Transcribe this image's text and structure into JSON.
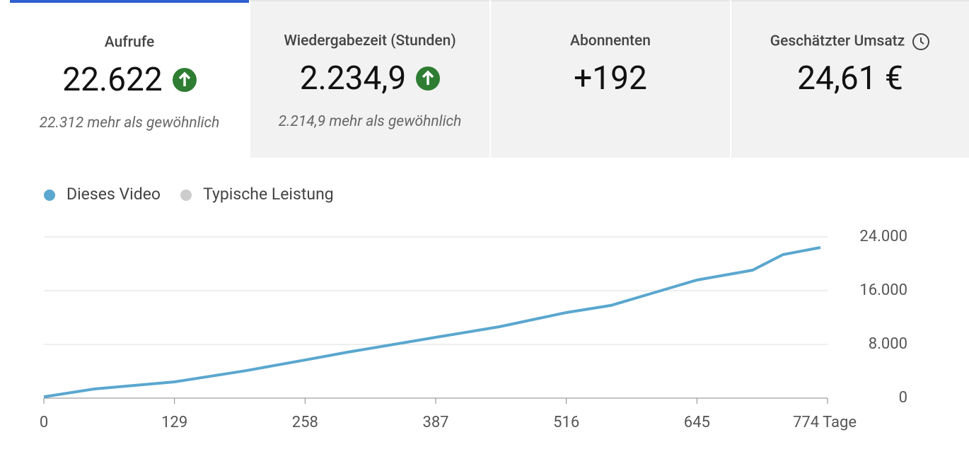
{
  "cards": [
    {
      "title": "Aufrufe",
      "value": "22.622",
      "note": "22.312 mehr als gewöhnlich",
      "trend": "up",
      "selected": true
    },
    {
      "title": "Wiedergabezeit (Stunden)",
      "value": "2.234,9",
      "note": "2.214,9 mehr als gewöhnlich",
      "trend": "up",
      "selected": false
    },
    {
      "title": "Abonnenten",
      "value": "+192",
      "selected": false
    },
    {
      "title": "Geschätzter Umsatz",
      "value": "24,61 €",
      "selected": false,
      "info": "clock"
    }
  ],
  "chart_data": {
    "type": "line",
    "x": [
      0,
      50,
      129,
      200,
      258,
      300,
      387,
      450,
      516,
      560,
      600,
      645,
      700,
      730,
      767
    ],
    "series": [
      {
        "name": "Dieses Video",
        "color": "#5aa7cf",
        "values": [
          200,
          1370,
          2420,
          4100,
          5680,
          6840,
          9050,
          10630,
          12740,
          13800,
          15580,
          17580,
          19050,
          21370,
          22420
        ]
      }
    ],
    "reference": {
      "name": "Typische Leistung",
      "color": "#cccccc"
    },
    "xlim": [
      0,
      774
    ],
    "xticks": [
      0,
      129,
      258,
      387,
      516,
      645,
      {
        "value": 774,
        "label": "774 Tage"
      }
    ],
    "ylim": [
      0,
      24000
    ],
    "yticks": [
      0,
      {
        "value": 8000,
        "label": "8.000"
      },
      {
        "value": 16000,
        "label": "16.000"
      },
      {
        "value": 24000,
        "label": "24.000"
      }
    ],
    "grid": true
  }
}
